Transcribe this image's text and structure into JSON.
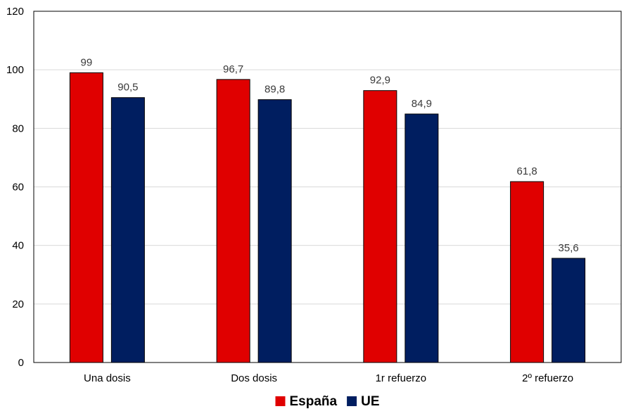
{
  "chart_data": {
    "type": "bar",
    "title": "",
    "xlabel": "",
    "ylabel": "",
    "categories": [
      "Una dosis",
      "Dos dosis",
      "1r refuerzo",
      "2º refuerzo"
    ],
    "series": [
      {
        "name": "España",
        "color": "#e00000",
        "values": [
          99,
          96.7,
          92.9,
          61.8
        ],
        "labels": [
          "99",
          "96,7",
          "92,9",
          "61,8"
        ]
      },
      {
        "name": "UE",
        "color": "#001e60",
        "values": [
          90.5,
          89.8,
          84.9,
          35.6
        ],
        "labels": [
          "90,5",
          "89,8",
          "84,9",
          "35,6"
        ]
      }
    ],
    "ylim": [
      0,
      120
    ],
    "yticks": [
      0,
      20,
      40,
      60,
      80,
      100,
      120
    ],
    "ytick_labels": [
      "0",
      "20",
      "40",
      "60",
      "80",
      "100",
      "120"
    ],
    "grid": true,
    "legend_position": "bottom-center"
  }
}
